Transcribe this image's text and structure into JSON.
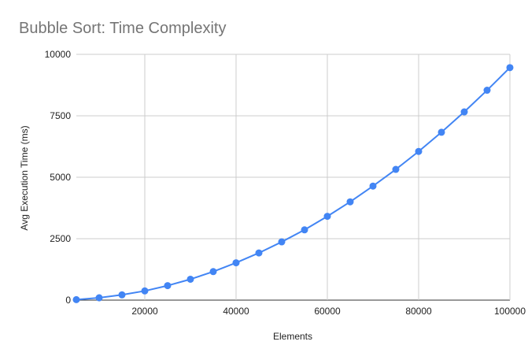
{
  "chart_data": {
    "type": "line",
    "title": "Bubble Sort: Time Complexity",
    "xlabel": "Elements",
    "ylabel": "Avg Execution Time (ms)",
    "xlim": [
      5000,
      100000
    ],
    "ylim": [
      0,
      10000
    ],
    "x_ticks": [
      20000,
      40000,
      60000,
      80000,
      100000
    ],
    "y_ticks": [
      0,
      2500,
      5000,
      7500,
      10000
    ],
    "grid": true,
    "legend": "none",
    "color": "#4285f4",
    "series": [
      {
        "x": [
          5000,
          10000,
          15000,
          20000,
          25000,
          30000,
          35000,
          40000,
          45000,
          50000,
          55000,
          60000,
          65000,
          70000,
          75000,
          80000,
          85000,
          90000,
          95000,
          100000
        ],
        "values": [
          20,
          95,
          215,
          375,
          590,
          850,
          1160,
          1520,
          1920,
          2370,
          2860,
          3410,
          4000,
          4640,
          5320,
          6050,
          6830,
          7660,
          8540,
          9460
        ]
      }
    ]
  }
}
